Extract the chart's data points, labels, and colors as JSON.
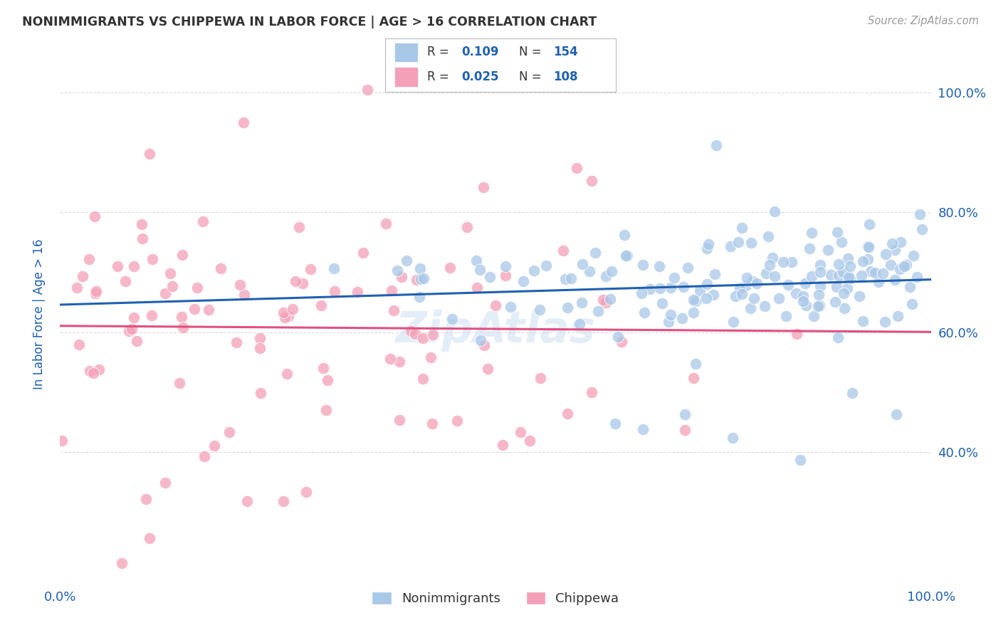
{
  "title": "NONIMMIGRANTS VS CHIPPEWA IN LABOR FORCE | AGE > 16 CORRELATION CHART",
  "source": "Source: ZipAtlas.com",
  "ylabel": "In Labor Force | Age > 16",
  "nonimmigrants_R": "0.109",
  "nonimmigrants_N": "154",
  "chippewa_R": "0.025",
  "chippewa_N": "108",
  "blue_color": "#a8c8e8",
  "pink_color": "#f4a0b8",
  "blue_line_color": "#2060b0",
  "pink_line_color": "#e05080",
  "legend_text_color": "#2060b0",
  "watermark_color": "#c8ddf0",
  "background_color": "#ffffff",
  "grid_color": "#cccccc",
  "title_color": "#333333",
  "source_color": "#999999",
  "axis_label_color": "#2060b0",
  "xlim": [
    0.0,
    1.0
  ],
  "ylim": [
    0.18,
    1.08
  ],
  "yticks": [
    0.4,
    0.6,
    0.8,
    1.0
  ],
  "ytick_labels": [
    "40.0%",
    "60.0%",
    "80.0%",
    "100.0%"
  ]
}
